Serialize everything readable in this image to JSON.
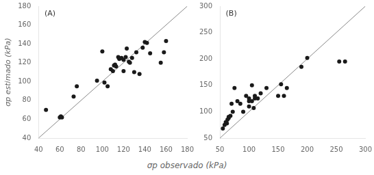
{
  "chart_data": [
    {
      "type": "scatter",
      "annotations": [
        "(A)"
      ],
      "ylabel": "σp estimado (kPa)",
      "xlabel": "σp observado (kPa)",
      "xlim": [
        40,
        180
      ],
      "ylim": [
        40,
        180
      ],
      "xticks": [
        40,
        60,
        80,
        100,
        120,
        140,
        160,
        180
      ],
      "yticks": [
        40,
        60,
        80,
        100,
        120,
        140,
        160,
        180
      ],
      "grid": false,
      "series": [
        {
          "type": "line",
          "color": "#888888",
          "line_style": "solid",
          "x": [
            40,
            180
          ],
          "values": [
            40,
            180
          ]
        },
        {
          "type": "scatter",
          "color": "#1a1a1a",
          "marker": "circle",
          "x": [
            47,
            60,
            61,
            62,
            73,
            76,
            95,
            100,
            102,
            105,
            108,
            110,
            111,
            112,
            113,
            115,
            116,
            118,
            120,
            120,
            122,
            123,
            125,
            126,
            128,
            130,
            132,
            135,
            138,
            140,
            142,
            145,
            155,
            158,
            160
          ],
          "values": [
            70,
            62,
            63,
            62,
            84,
            95,
            101,
            132,
            99,
            95,
            113,
            111,
            117,
            118,
            116,
            126,
            124,
            125,
            123,
            111,
            126,
            135,
            121,
            120,
            125,
            110,
            131,
            108,
            136,
            142,
            141,
            130,
            120,
            131,
            143
          ]
        }
      ]
    },
    {
      "type": "scatter",
      "annotations": [
        "(B)"
      ],
      "xlim": [
        50,
        300
      ],
      "ylim": [
        50,
        300
      ],
      "xticks": [
        50,
        100,
        150,
        200,
        250,
        300
      ],
      "yticks": [
        50,
        100,
        150,
        200,
        250,
        300
      ],
      "grid": false,
      "series": [
        {
          "type": "line",
          "color": "#888888",
          "line_style": "solid",
          "x": [
            50,
            300
          ],
          "values": [
            50,
            300
          ]
        },
        {
          "type": "scatter",
          "color": "#1a1a1a",
          "marker": "circle",
          "x": [
            55,
            58,
            60,
            62,
            63,
            65,
            65,
            68,
            70,
            72,
            75,
            80,
            85,
            90,
            95,
            100,
            100,
            100,
            105,
            105,
            108,
            110,
            110,
            115,
            120,
            130,
            150,
            155,
            160,
            165,
            190,
            200,
            255,
            265
          ],
          "values": [
            68,
            75,
            80,
            78,
            85,
            88,
            90,
            92,
            115,
            100,
            145,
            120,
            115,
            100,
            130,
            110,
            120,
            125,
            150,
            120,
            107,
            125,
            130,
            125,
            135,
            145,
            130,
            152,
            130,
            145,
            185,
            202,
            195,
            195
          ]
        }
      ]
    }
  ]
}
